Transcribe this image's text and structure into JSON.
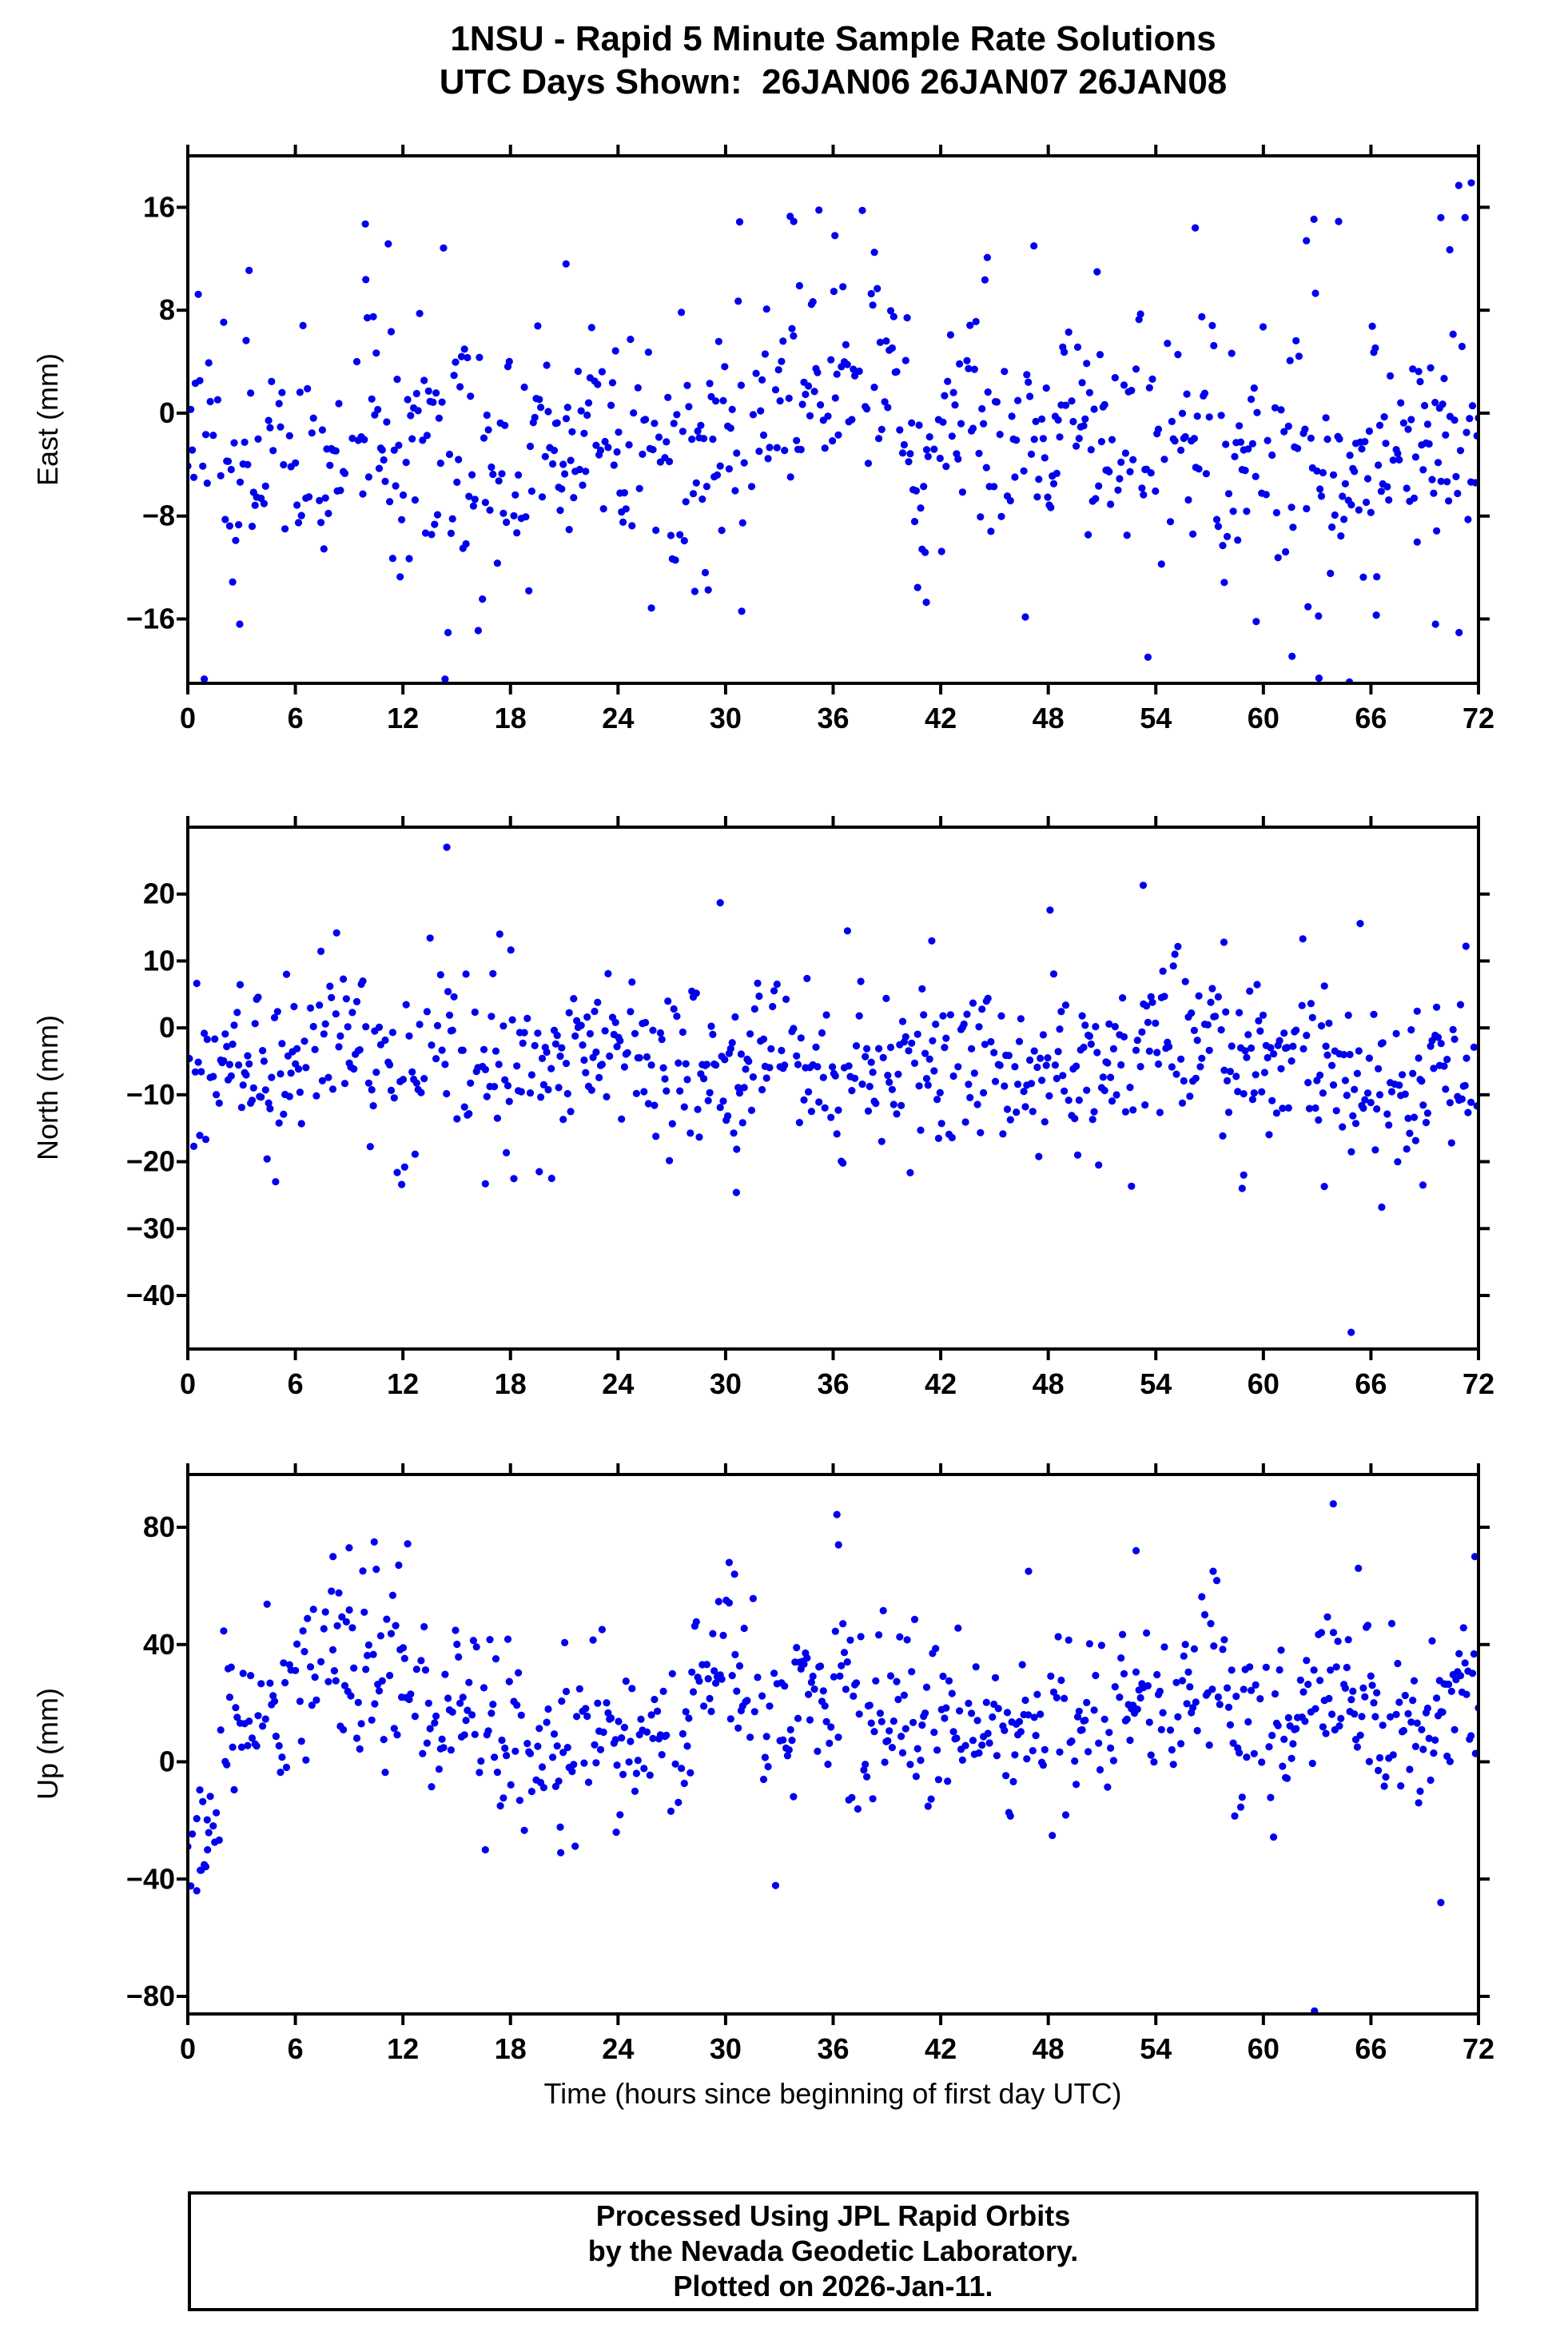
{
  "title": {
    "line1": "1NSU - Rapid 5 Minute Sample Rate Solutions",
    "line2": "UTC Days Shown:  26JAN06 26JAN07 26JAN08"
  },
  "footer": {
    "line1": "Processed Using JPL Rapid Orbits",
    "line2": "by the Nevada Geodetic Laboratory.",
    "line3": "Plotted on 2026-Jan-11."
  },
  "chart_data": {
    "type": "scatter",
    "title": "1NSU - Rapid 5 Minute Sample Rate Solutions",
    "subtitle": "UTC Days Shown: 26JAN06 26JAN07 26JAN08",
    "station": "1NSU",
    "days_shown": [
      "26JAN06",
      "26JAN07",
      "26JAN08"
    ],
    "sample_interval_minutes": 5,
    "xlabel": "Time (hours since beginning of first day UTC)",
    "xlim": [
      0,
      72
    ],
    "x_ticks": [
      0,
      6,
      12,
      18,
      24,
      30,
      36,
      42,
      48,
      54,
      60,
      66,
      72
    ],
    "marker_color": "#0000EE",
    "frame_color": "#000000",
    "background_color": "#FFFFFF",
    "grid": false,
    "legend": false,
    "panels": [
      {
        "name": "east",
        "ylabel": "East (mm)",
        "ylim": [
          -21,
          20
        ],
        "yticks": [
          -16,
          -8,
          0,
          8,
          16
        ],
        "approx_mean_mm": -2.5,
        "approx_scatter_sd_mm": 5.5,
        "gen": {
          "seed": 42,
          "n": 864,
          "dropout": 0.18,
          "base": -2.8,
          "sd": 4.8,
          "tail_p": 0.1,
          "tail_sd": 8,
          "bumps": [
            {
              "t0": 32,
              "t1": 40,
              "dm": 3.5
            },
            {
              "t0": 42,
              "t1": 46,
              "dm": 2.5
            },
            {
              "t0": 8,
              "t1": 11,
              "dm": 2
            },
            {
              "t0": 20,
              "t1": 23,
              "dm": 1.5
            },
            {
              "t0": 62,
              "t1": 66,
              "dm": -2.5
            },
            {
              "t0": 66,
              "t1": 72,
              "dm": 1
            }
          ],
          "outliers": [
            [
              33.6,
              15.3
            ],
            [
              33.8,
              14.9
            ],
            [
              70.9,
              17.7
            ],
            [
              9.9,
              14.7
            ],
            [
              21.1,
              11.6
            ],
            [
              56.2,
              14.4
            ],
            [
              2.9,
              -16.4
            ],
            [
              16.2,
              -16.9
            ],
            [
              30.9,
              -15.4
            ],
            [
              41.2,
              -14.7
            ],
            [
              59.6,
              -16.2
            ],
            [
              63.1,
              -20.6
            ],
            [
              61.6,
              -18.9
            ],
            [
              64.8,
              -20.9
            ],
            [
              66.3,
              -15.7
            ],
            [
              69.6,
              -16.4
            ],
            [
              71.6,
              17.9
            ],
            [
              62.4,
              13.4
            ],
            [
              64.2,
              14.9
            ],
            [
              69.9,
              15.2
            ],
            [
              70.4,
              12.7
            ],
            [
              36.1,
              13.8
            ],
            [
              38.3,
              12.5
            ],
            [
              44.6,
              12.1
            ],
            [
              47.2,
              13.0
            ]
          ]
        }
      },
      {
        "name": "north",
        "ylabel": "North (mm)",
        "ylim": [
          -48,
          30
        ],
        "yticks": [
          -40,
          -30,
          -20,
          -10,
          0,
          10,
          20
        ],
        "approx_mean_mm": -5.5,
        "approx_scatter_sd_mm": 7,
        "gen": {
          "seed": 1234,
          "n": 864,
          "dropout": 0.18,
          "base": -6,
          "sd": 6,
          "tail_p": 0.08,
          "tail_sd": 9.5,
          "bumps": [
            {
              "t0": 6.5,
              "t1": 10,
              "dm": 4.5
            },
            {
              "t0": 13,
              "t1": 15,
              "dm": 3
            },
            {
              "t0": 53,
              "t1": 58,
              "dm": 5
            },
            {
              "t0": 21,
              "t1": 24,
              "dm": 2
            },
            {
              "t0": 31,
              "t1": 34,
              "dm": 2.5
            }
          ],
          "outliers": [
            [
              14.45,
              27
            ],
            [
              53.3,
              21.3
            ],
            [
              29.7,
              18.7
            ],
            [
              48.1,
              17.6
            ],
            [
              64.9,
              -45.5
            ],
            [
              65.4,
              15.6
            ],
            [
              66.6,
              -26.8
            ],
            [
              30.6,
              -24.6
            ],
            [
              4.9,
              -23
            ],
            [
              16.6,
              -23.3
            ],
            [
              20.3,
              -22.5
            ],
            [
              58.9,
              -22
            ],
            [
              63.4,
              -23.7
            ],
            [
              68.9,
              -23.5
            ],
            [
              8.3,
              14.2
            ],
            [
              17.4,
              14.0
            ],
            [
              57.8,
              12.8
            ],
            [
              62.2,
              13.3
            ],
            [
              71.3,
              12.2
            ],
            [
              36.8,
              14.5
            ],
            [
              41.5,
              13.0
            ]
          ]
        }
      },
      {
        "name": "up",
        "ylabel": "Up (mm)",
        "ylim": [
          -86,
          98
        ],
        "yticks": [
          -80,
          -40,
          0,
          40,
          80
        ],
        "approx_mean_mm": 16,
        "approx_scatter_sd_mm": 20,
        "gen": {
          "seed": 9001,
          "n": 864,
          "dropout": 0.18,
          "base": 14,
          "sd": 14,
          "tail_p": 0.09,
          "tail_sd": 22,
          "bumps": [
            {
              "t0": 0,
              "t1": 1.8,
              "dm": -30
            },
            {
              "t0": 6,
              "t1": 13,
              "dm": 18
            },
            {
              "t0": 14,
              "t1": 16,
              "dm": 8
            },
            {
              "t0": 19,
              "t1": 22,
              "dm": -8
            },
            {
              "t0": 28,
              "t1": 32,
              "dm": 14
            },
            {
              "t0": 34,
              "t1": 37,
              "dm": 10
            },
            {
              "t0": 52,
              "t1": 58,
              "dm": 12
            },
            {
              "t0": 62,
              "t1": 66,
              "dm": 10
            },
            {
              "t0": 70,
              "t1": 72,
              "dm": 8
            }
          ],
          "outliers": [
            [
              63.9,
              88
            ],
            [
              62.85,
              -85
            ],
            [
              69.9,
              -48
            ],
            [
              0.5,
              -44
            ],
            [
              0.7,
              -37
            ],
            [
              30.2,
              68
            ],
            [
              30.5,
              64
            ],
            [
              36.3,
              74
            ],
            [
              52.9,
              72
            ],
            [
              57.2,
              65
            ],
            [
              10.4,
              75
            ],
            [
              9.0,
              73
            ],
            [
              8.1,
              70
            ],
            [
              65.3,
              66
            ],
            [
              71.8,
              70
            ],
            [
              46.9,
              65
            ],
            [
              1.1,
              -30
            ],
            [
              16.6,
              -30
            ],
            [
              20.8,
              -31
            ],
            [
              23.9,
              -24
            ]
          ]
        }
      }
    ]
  }
}
